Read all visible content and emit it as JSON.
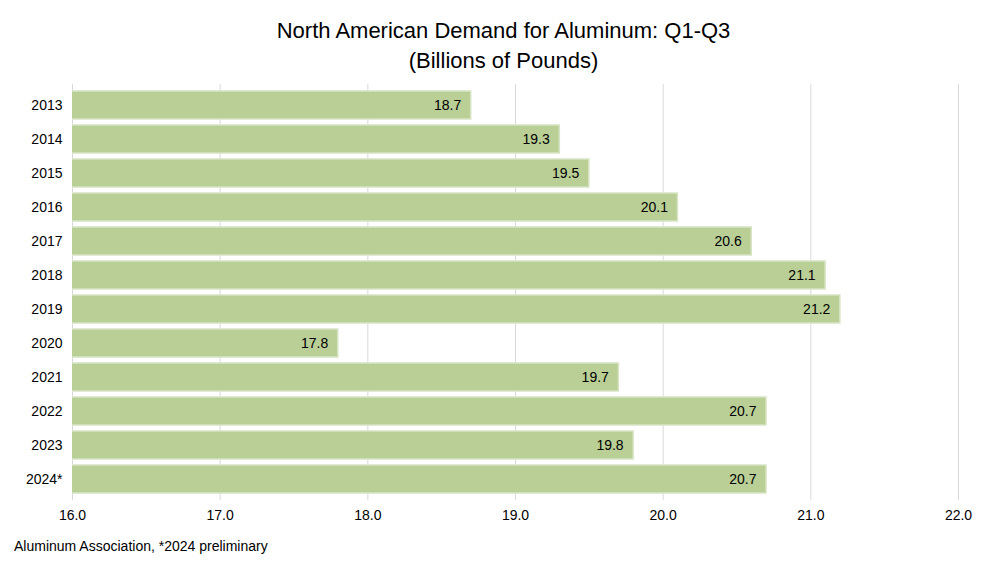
{
  "chart_data": {
    "type": "bar",
    "orientation": "horizontal",
    "title": "North American Demand for Aluminum: Q1-Q3",
    "subtitle": "(Billions of Pounds)",
    "caption": "Aluminum Association, *2024 preliminary",
    "categories": [
      "2013",
      "2014",
      "2015",
      "2016",
      "2017",
      "2018",
      "2019",
      "2020",
      "2021",
      "2022",
      "2023",
      "2024*"
    ],
    "values": [
      18.7,
      19.3,
      19.5,
      20.1,
      20.6,
      21.1,
      21.2,
      17.8,
      19.7,
      20.7,
      19.8,
      20.7
    ],
    "color": "#b9cf96",
    "xlim": [
      16,
      22
    ],
    "xticks": [
      {
        "value": 16,
        "label": "16.0"
      },
      {
        "value": 17,
        "label": "17.0"
      },
      {
        "value": 18,
        "label": "18.0"
      },
      {
        "value": 19,
        "label": "19.0"
      },
      {
        "value": 20,
        "label": "20.0"
      },
      {
        "value": 21,
        "label": "21.0"
      },
      {
        "value": 22,
        "label": "22.0"
      }
    ],
    "grid": true,
    "data_labels": true
  }
}
